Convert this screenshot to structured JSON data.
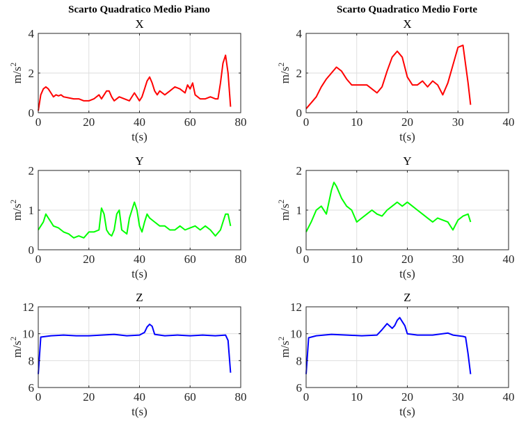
{
  "suptitles": [
    "Scarto Quadratico Medio Piano",
    "Scarto Quadratico Medio Forte"
  ],
  "chart_data": [
    {
      "type": "line",
      "panel": "piano-x",
      "title": "X",
      "xlabel": "t(s)",
      "ylabel": "m/s2",
      "xlim": [
        0,
        80
      ],
      "ylim": [
        0,
        4
      ],
      "xticks": [
        0,
        20,
        40,
        60,
        80
      ],
      "yticks": [
        0,
        2,
        4
      ],
      "grid": true,
      "color": "#ff0000",
      "series": [
        {
          "x": [
            0,
            1,
            2,
            3,
            4,
            5,
            6,
            7,
            8,
            9,
            10,
            12,
            14,
            16,
            18,
            20,
            22,
            24,
            25,
            26,
            27,
            28,
            29,
            30,
            32,
            34,
            36,
            38,
            40,
            41,
            42,
            43,
            44,
            45,
            46,
            47,
            48,
            50,
            52,
            54,
            56,
            58,
            59,
            60,
            61,
            62,
            64,
            66,
            68,
            70,
            71,
            72,
            73,
            74,
            75,
            76
          ],
          "y": [
            0.1,
            0.9,
            1.2,
            1.3,
            1.2,
            1.0,
            0.8,
            0.9,
            0.85,
            0.9,
            0.8,
            0.75,
            0.7,
            0.7,
            0.6,
            0.6,
            0.7,
            0.9,
            0.7,
            0.9,
            1.1,
            1.1,
            0.8,
            0.6,
            0.8,
            0.7,
            0.6,
            1.0,
            0.6,
            0.8,
            1.2,
            1.6,
            1.8,
            1.5,
            1.1,
            0.9,
            1.1,
            0.9,
            1.1,
            1.3,
            1.2,
            1.0,
            1.4,
            1.2,
            1.5,
            0.9,
            0.7,
            0.7,
            0.8,
            0.7,
            0.7,
            1.5,
            2.5,
            2.9,
            2.0,
            0.3
          ]
        }
      ]
    },
    {
      "type": "line",
      "panel": "forte-x",
      "title": "X",
      "xlabel": "t(s)",
      "ylabel": "m/s2",
      "xlim": [
        0,
        40
      ],
      "ylim": [
        0,
        4
      ],
      "xticks": [
        0,
        10,
        20,
        30,
        40
      ],
      "yticks": [
        0,
        2,
        4
      ],
      "grid": true,
      "color": "#ff0000",
      "series": [
        {
          "x": [
            0,
            1,
            2,
            3,
            4,
            5,
            6,
            7,
            8,
            9,
            10,
            11,
            12,
            13,
            14,
            15,
            16,
            17,
            18,
            19,
            20,
            21,
            22,
            23,
            24,
            25,
            26,
            27,
            28,
            29,
            30,
            31,
            32,
            32.5
          ],
          "y": [
            0.2,
            0.5,
            0.8,
            1.3,
            1.7,
            2.0,
            2.3,
            2.1,
            1.7,
            1.4,
            1.4,
            1.4,
            1.4,
            1.2,
            1.0,
            1.3,
            2.1,
            2.8,
            3.1,
            2.8,
            1.8,
            1.4,
            1.4,
            1.6,
            1.3,
            1.6,
            1.4,
            0.9,
            1.5,
            2.4,
            3.3,
            3.4,
            1.5,
            0.4
          ]
        }
      ]
    },
    {
      "type": "line",
      "panel": "piano-y",
      "title": "Y",
      "xlabel": "t(s)",
      "ylabel": "m/s2",
      "xlim": [
        0,
        80
      ],
      "ylim": [
        0,
        2
      ],
      "xticks": [
        0,
        20,
        40,
        60,
        80
      ],
      "yticks": [
        0,
        1,
        2
      ],
      "grid": true,
      "color": "#00ff00",
      "series": [
        {
          "x": [
            0,
            1,
            2,
            3,
            4,
            5,
            6,
            8,
            10,
            12,
            14,
            16,
            18,
            20,
            22,
            24,
            25,
            26,
            27,
            28,
            29,
            30,
            31,
            32,
            33,
            34,
            35,
            36,
            37,
            38,
            39,
            40,
            41,
            42,
            43,
            44,
            46,
            48,
            50,
            52,
            54,
            56,
            58,
            60,
            62,
            64,
            66,
            68,
            70,
            72,
            73,
            74,
            75,
            76
          ],
          "y": [
            0.5,
            0.6,
            0.7,
            0.9,
            0.8,
            0.7,
            0.6,
            0.55,
            0.45,
            0.4,
            0.3,
            0.35,
            0.3,
            0.45,
            0.45,
            0.5,
            1.05,
            0.9,
            0.5,
            0.4,
            0.35,
            0.5,
            0.9,
            1.0,
            0.5,
            0.45,
            0.4,
            0.8,
            1.0,
            1.2,
            1.0,
            0.6,
            0.45,
            0.7,
            0.9,
            0.8,
            0.7,
            0.6,
            0.6,
            0.5,
            0.5,
            0.6,
            0.5,
            0.55,
            0.6,
            0.5,
            0.6,
            0.5,
            0.35,
            0.5,
            0.7,
            0.9,
            0.9,
            0.6
          ]
        }
      ]
    },
    {
      "type": "line",
      "panel": "forte-y",
      "title": "Y",
      "xlabel": "t(s)",
      "ylabel": "m/s2",
      "xlim": [
        0,
        40
      ],
      "ylim": [
        0,
        2
      ],
      "xticks": [
        0,
        10,
        20,
        30,
        40
      ],
      "yticks": [
        0,
        1,
        2
      ],
      "grid": true,
      "color": "#00ff00",
      "series": [
        {
          "x": [
            0,
            1,
            2,
            3,
            4,
            5,
            5.5,
            6,
            7,
            8,
            9,
            10,
            11,
            12,
            13,
            14,
            15,
            16,
            17,
            18,
            19,
            20,
            21,
            22,
            23,
            24,
            25,
            26,
            27,
            28,
            29,
            30,
            31,
            32,
            32.5
          ],
          "y": [
            0.45,
            0.7,
            1.0,
            1.1,
            0.9,
            1.5,
            1.7,
            1.6,
            1.3,
            1.1,
            1.0,
            0.7,
            0.8,
            0.9,
            1.0,
            0.9,
            0.85,
            1.0,
            1.1,
            1.2,
            1.1,
            1.2,
            1.1,
            1.0,
            0.9,
            0.8,
            0.7,
            0.8,
            0.75,
            0.7,
            0.5,
            0.75,
            0.85,
            0.9,
            0.7
          ]
        }
      ]
    },
    {
      "type": "line",
      "panel": "piano-z",
      "title": "Z",
      "xlabel": "t(s)",
      "ylabel": "m/s2",
      "xlim": [
        0,
        80
      ],
      "ylim": [
        6,
        12
      ],
      "xticks": [
        0,
        20,
        40,
        60,
        80
      ],
      "yticks": [
        6,
        8,
        10,
        12
      ],
      "grid": true,
      "color": "#0000ff",
      "series": [
        {
          "x": [
            0,
            1,
            5,
            10,
            15,
            20,
            25,
            30,
            35,
            40,
            42,
            43,
            44,
            45,
            46,
            48,
            50,
            55,
            60,
            65,
            70,
            74,
            75,
            76
          ],
          "y": [
            7.0,
            9.75,
            9.85,
            9.9,
            9.85,
            9.85,
            9.9,
            9.95,
            9.85,
            9.9,
            10.1,
            10.5,
            10.7,
            10.55,
            9.95,
            9.9,
            9.85,
            9.9,
            9.85,
            9.9,
            9.85,
            9.9,
            9.5,
            7.1
          ]
        }
      ]
    },
    {
      "type": "line",
      "panel": "forte-z",
      "title": "Z",
      "xlabel": "t(s)",
      "ylabel": "m/s2",
      "xlim": [
        0,
        40
      ],
      "ylim": [
        6,
        12
      ],
      "xticks": [
        0,
        10,
        20,
        30,
        40
      ],
      "yticks": [
        6,
        8,
        10,
        12
      ],
      "grid": true,
      "color": "#0000ff",
      "series": [
        {
          "x": [
            0,
            0.5,
            2,
            5,
            8,
            11,
            14,
            15,
            16,
            17,
            17.5,
            18,
            18.5,
            19,
            19.5,
            20,
            22,
            25,
            28,
            29,
            31,
            31.5,
            32,
            32.5
          ],
          "y": [
            7.0,
            9.7,
            9.85,
            9.95,
            9.9,
            9.85,
            9.9,
            10.3,
            10.75,
            10.4,
            10.6,
            11.0,
            11.2,
            10.9,
            10.6,
            10.0,
            9.9,
            9.9,
            10.05,
            9.9,
            9.8,
            9.75,
            8.5,
            7.0
          ]
        }
      ]
    }
  ]
}
